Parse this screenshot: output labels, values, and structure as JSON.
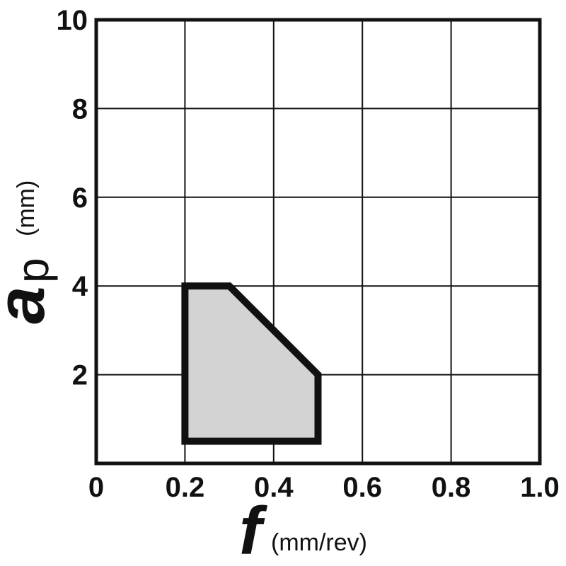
{
  "chart_data": {
    "type": "area",
    "x": {
      "label_main": "f",
      "label_unit": "(mm/rev)",
      "range": [
        0,
        1.0
      ],
      "ticks": [
        0,
        0.2,
        0.4,
        0.6,
        0.8,
        1.0
      ],
      "tick_labels": [
        "0",
        "0.2",
        "0.4",
        "0.6",
        "0.8",
        "1.0"
      ]
    },
    "y": {
      "label_main": "a",
      "label_sub": "p",
      "label_unit": "(mm)",
      "range": [
        0,
        10
      ],
      "ticks": [
        2,
        4,
        6,
        8,
        10
      ],
      "tick_labels": [
        "2",
        "4",
        "6",
        "8",
        "10"
      ]
    },
    "grid": true,
    "region": {
      "points": [
        {
          "f": 0.2,
          "ap": 0.5
        },
        {
          "f": 0.2,
          "ap": 4.0
        },
        {
          "f": 0.3,
          "ap": 4.0
        },
        {
          "f": 0.5,
          "ap": 2.0
        },
        {
          "f": 0.5,
          "ap": 0.5
        }
      ],
      "fill": "#d3d3d3",
      "stroke": "#111111"
    },
    "colors": {
      "grid": "#111111",
      "frame": "#111111",
      "text": "#111111"
    }
  }
}
